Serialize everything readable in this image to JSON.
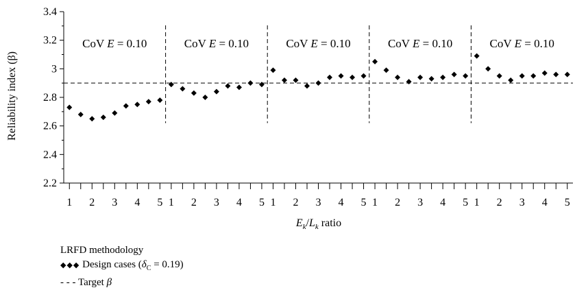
{
  "chart_data": {
    "type": "scatter",
    "ylabel": "Reliability index (β)",
    "xlabel_parts": {
      "E": "E",
      "E_sub": "k",
      "slash": "/",
      "L": "L",
      "L_sub": "k",
      "rest": " ratio"
    },
    "ylim": [
      2.2,
      3.4
    ],
    "y_ticks": [
      2.2,
      2.4,
      2.6,
      2.8,
      3.0,
      3.2,
      3.4
    ],
    "y_tick_labels": [
      "2.2",
      "2.4",
      "2.6",
      "2.8",
      "3",
      "3.2",
      "3.4"
    ],
    "x_tick_labels": [
      "1",
      "2",
      "3",
      "4",
      "5"
    ],
    "target_beta": 2.9,
    "panel_label": {
      "pre": "CoV ",
      "var": "E",
      "post": " = 0.10"
    },
    "panels": [
      {
        "values": [
          2.73,
          2.68,
          2.65,
          2.66,
          2.69,
          2.74,
          2.75,
          2.77,
          2.78
        ]
      },
      {
        "values": [
          2.89,
          2.86,
          2.83,
          2.8,
          2.84,
          2.88,
          2.87,
          2.9,
          2.89
        ]
      },
      {
        "values": [
          2.99,
          2.92,
          2.92,
          2.88,
          2.9,
          2.94,
          2.95,
          2.94,
          2.95
        ]
      },
      {
        "values": [
          3.05,
          2.99,
          2.94,
          2.91,
          2.94,
          2.93,
          2.94,
          2.96,
          2.95
        ]
      },
      {
        "values": [
          3.09,
          3.0,
          2.95,
          2.92,
          2.95,
          2.95,
          2.97,
          2.96,
          2.96
        ]
      }
    ],
    "legend": {
      "title": "LRFD methodology",
      "design_label_pre": "Design cases (",
      "design_delta": "δ",
      "design_delta_sub": "C",
      "design_label_post": " = 0.19)",
      "target_label_pre": "Target ",
      "target_beta_symbol": "β"
    },
    "grid": false,
    "colors": {
      "marker": "#000000",
      "lines": "#000000"
    }
  }
}
